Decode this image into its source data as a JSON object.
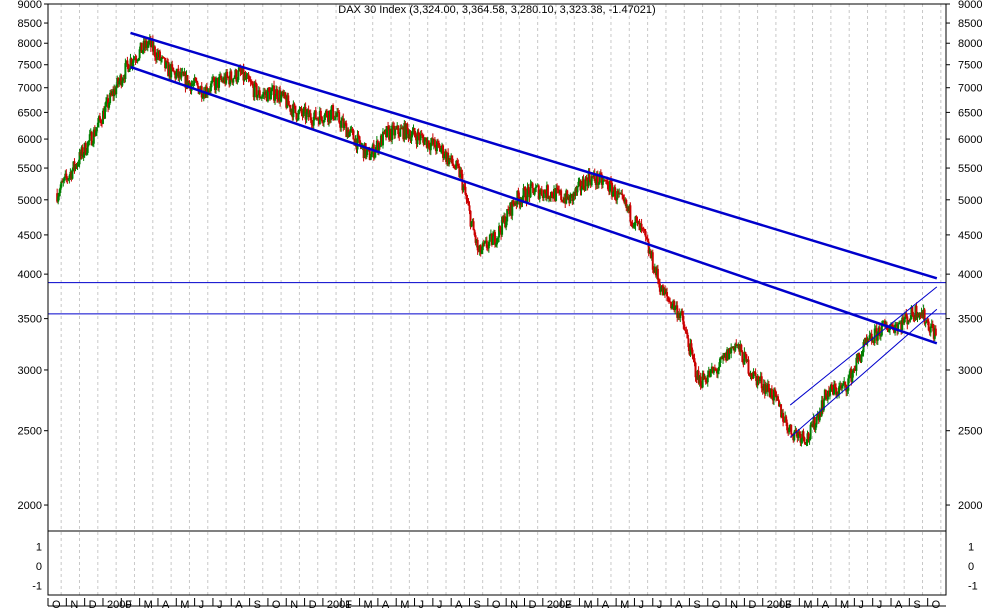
{
  "header": {
    "title": "DAX 30 Index (3,324.00, 3,364.58, 3,280.10, 3,323.38, -1.47021)"
  },
  "colors": {
    "up": "#008000",
    "down": "#cc0000",
    "trend": "#0000cc",
    "grid": "#c8c8c8",
    "axis": "#000000"
  },
  "chart_data": [
    {
      "type": "candlestick",
      "title": "DAX 30 Index (3,324.00, 3,364.58, 3,280.10, 3,323.38, -1.47021)",
      "scale": "log",
      "ylim": [
        1850,
        9000
      ],
      "y_ticks": [
        2000,
        2500,
        3000,
        3500,
        4000,
        4500,
        5000,
        5500,
        6000,
        6500,
        7000,
        7500,
        8000,
        8500,
        9000
      ],
      "x_tick_labels": [
        "O",
        "N",
        "D",
        "2000",
        "F",
        "M",
        "A",
        "M",
        "J",
        "J",
        "A",
        "S",
        "O",
        "N",
        "D",
        "2001",
        "F",
        "M",
        "A",
        "M",
        "J",
        "J",
        "A",
        "S",
        "O",
        "N",
        "D",
        "2002",
        "F",
        "M",
        "A",
        "M",
        "J",
        "J",
        "A",
        "S",
        "O",
        "N",
        "D",
        "2003",
        "F",
        "M",
        "A",
        "M",
        "J",
        "J",
        "A",
        "S",
        "O"
      ],
      "grid": "vertical dashed",
      "last": {
        "open": 3324.0,
        "high": 3364.58,
        "low": 3280.1,
        "close": 3323.38,
        "change": -1.47021
      },
      "series": [
        {
          "x": [
            "1999-10",
            "1999-11",
            "1999-12",
            "2000-01",
            "2000-02",
            "2000-03",
            "2000-04",
            "2000-05",
            "2000-06",
            "2000-07",
            "2000-08",
            "2000-09",
            "2000-10",
            "2000-11",
            "2000-12",
            "2001-01",
            "2001-02",
            "2001-03",
            "2001-04",
            "2001-05",
            "2001-06",
            "2001-07",
            "2001-08",
            "2001-09",
            "2001-10",
            "2001-11",
            "2001-12",
            "2002-01",
            "2002-02",
            "2002-03",
            "2002-04",
            "2002-05",
            "2002-06",
            "2002-07",
            "2002-08",
            "2002-09",
            "2002-10",
            "2002-11",
            "2002-12",
            "2003-01",
            "2003-02",
            "2003-03",
            "2003-04",
            "2003-05",
            "2003-06",
            "2003-07",
            "2003-08",
            "2003-09",
            "2003-10"
          ],
          "values": [
            5100,
            5550,
            6100,
            6850,
            7600,
            8000,
            7400,
            7150,
            6950,
            7150,
            7300,
            6850,
            6900,
            6500,
            6400,
            6500,
            6100,
            5700,
            6100,
            6150,
            6000,
            5800,
            5400,
            4250,
            4500,
            5000,
            5150,
            5100,
            5000,
            5350,
            5250,
            4900,
            4500,
            3800,
            3550,
            2900,
            3000,
            3250,
            2950,
            2800,
            2500,
            2450,
            2800,
            2850,
            3200,
            3400,
            3450,
            3600,
            3323
          ]
        }
      ],
      "horizontal_lines": [
        3900,
        3550
      ],
      "trend_lines": [
        {
          "name": "upper-channel",
          "from": [
            "2000-02",
            8250
          ],
          "to": [
            "2003-10",
            3950
          ]
        },
        {
          "name": "lower-channel",
          "from": [
            "2000-02",
            7450
          ],
          "to": [
            "2003-10",
            3250
          ]
        },
        {
          "name": "recovery-lower",
          "from": [
            "2003-02",
            2450
          ],
          "to": [
            "2003-10",
            3600
          ]
        },
        {
          "name": "recovery-upper",
          "from": [
            "2003-02",
            2700
          ],
          "to": [
            "2003-10",
            3850
          ]
        }
      ]
    },
    {
      "type": "line",
      "title": "",
      "ylim": [
        -1.5,
        1.8
      ],
      "y_ticks": [
        1,
        0,
        -1
      ],
      "values": []
    }
  ]
}
